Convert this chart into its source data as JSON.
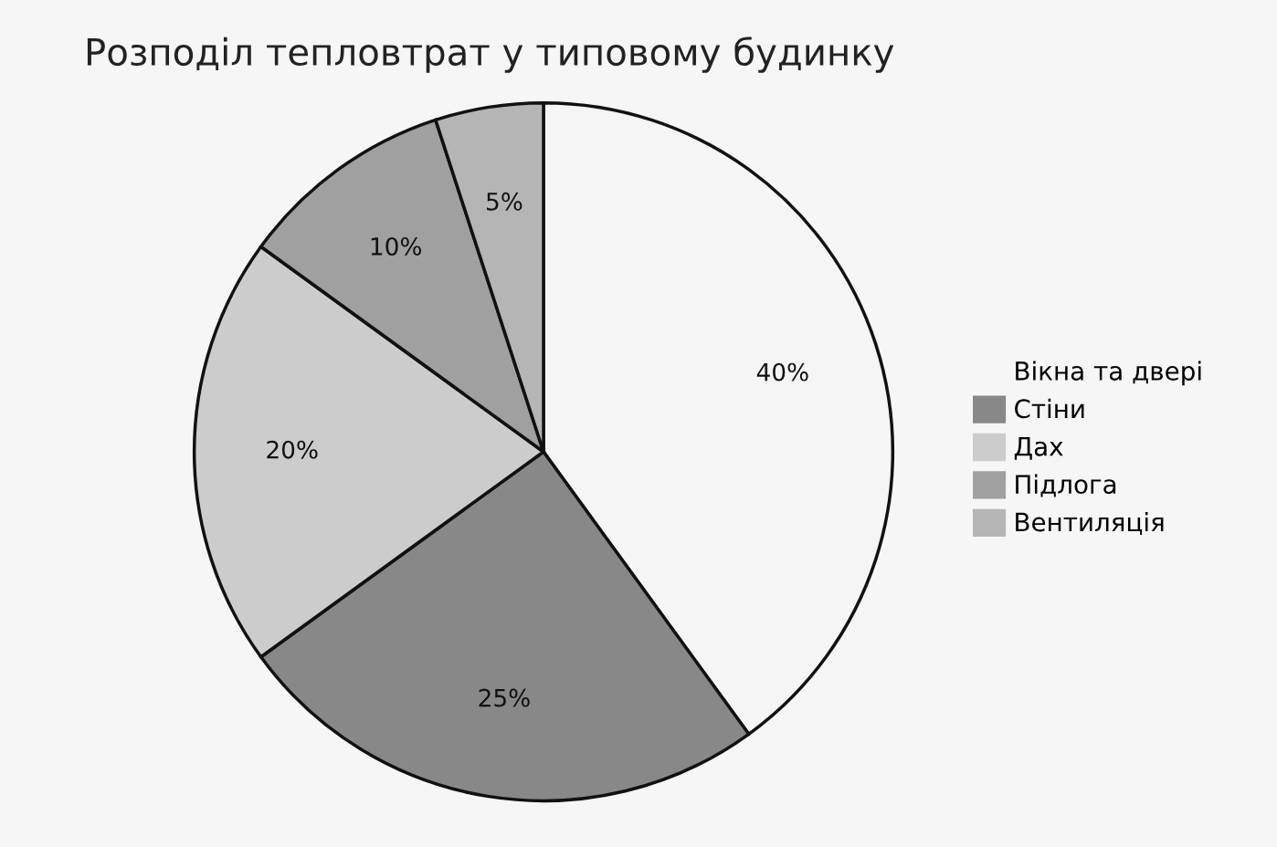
{
  "chart_data": {
    "type": "pie",
    "title": "Розподіл тепловтрат у типовому будинку",
    "categories": [
      "Вікна та двері",
      "Стіни",
      "Дах",
      "Підлога",
      "Вентиляція"
    ],
    "values": [
      40,
      25,
      20,
      10,
      5
    ],
    "value_labels": [
      "40%",
      "25%",
      "20%",
      "10%",
      "5%"
    ],
    "colors": [
      "#f5f5f5",
      "#888888",
      "#cccccc",
      "#a0a0a0",
      "#b5b5b5"
    ],
    "legend": "right"
  }
}
